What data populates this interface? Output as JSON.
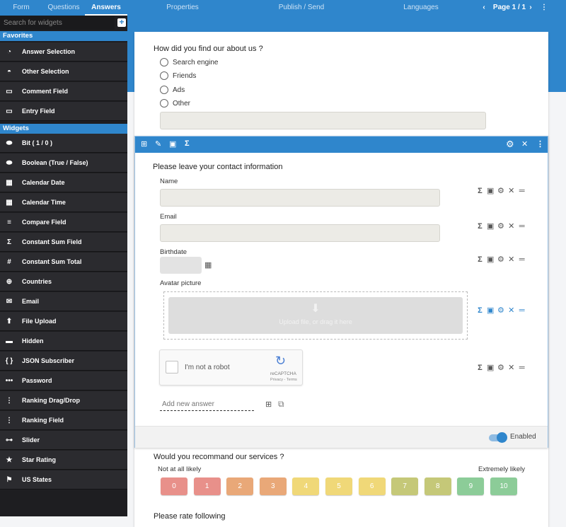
{
  "topbar": {
    "tabs": [
      "Form",
      "Questions",
      "Answers"
    ],
    "active": "Answers",
    "properties": "Properties",
    "publish": "Publish / Send",
    "languages": "Languages",
    "page": "Page 1 / 1"
  },
  "sidebar": {
    "search_placeholder": "Search for widgets",
    "favorites_label": "Favorites",
    "favorites": [
      "Answer Selection",
      "Other Selection",
      "Comment Field",
      "Entry Field"
    ],
    "widgets_label": "Widgets",
    "widgets": [
      "Bit ( 1 / 0 )",
      "Boolean (True / False)",
      "Calendar Date",
      "Calendar Time",
      "Compare Field",
      "Constant Sum Field",
      "Constant Sum Total",
      "Countries",
      "Email",
      "File Upload",
      "Hidden",
      "JSON Subscriber",
      "Password",
      "Ranking Drag/Drop",
      "Ranking Field",
      "Slider",
      "Star Rating",
      "US States"
    ]
  },
  "q1": {
    "title": "How did you find our about us ?",
    "options": [
      "Search engine",
      "Friends",
      "Ads",
      "Other"
    ]
  },
  "q2": {
    "title": "Please leave your contact information",
    "fields": {
      "name": "Name",
      "email": "Email",
      "birthdate": "Birthdate",
      "avatar": "Avatar picture"
    },
    "upload_text": "Upload file, or drag it here",
    "captcha": {
      "label": "I'm not a robot",
      "brand": "reCAPTCHA",
      "links": "Privacy - Terms"
    },
    "add_answer_placeholder": "Add new answer",
    "enabled_label": "Enabled",
    "enabled": true
  },
  "q3": {
    "title": "Would you recommand our services ?",
    "low": "Not at all likely",
    "high": "Extremely likely",
    "scale": [
      "0",
      "1",
      "2",
      "3",
      "4",
      "5",
      "6",
      "7",
      "8",
      "9",
      "10"
    ],
    "colors": [
      "#e8908a",
      "#e8908a",
      "#e9a878",
      "#e9a878",
      "#f0d878",
      "#f0d878",
      "#f0d878",
      "#c5c878",
      "#c5c878",
      "#8ccc98",
      "#8ccc98"
    ]
  },
  "q4": {
    "title": "Please rate following"
  },
  "colors": {
    "accent": "#2f86cc",
    "sidebar": "#2b2b2f"
  }
}
